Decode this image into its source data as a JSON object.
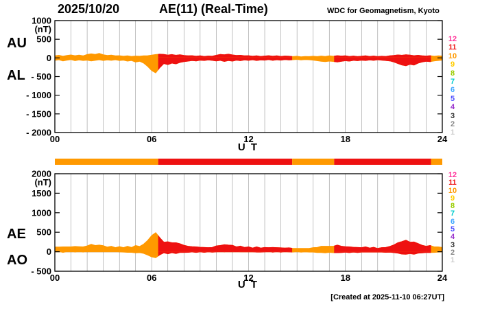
{
  "header": {
    "date": "2025/10/20",
    "title": "AE(11) (Real-Time)",
    "source": "WDC for Geomagnetism, Kyoto"
  },
  "footer": {
    "created": "[Created at 2025-11-10 06:27UT]"
  },
  "colors": {
    "orange": "#ff9900",
    "red": "#ee1111",
    "grid": "#808080",
    "axis": "#000000"
  },
  "legend": {
    "levels": [
      {
        "label": "12",
        "color": "#ff3399"
      },
      {
        "label": "11",
        "color": "#ee1111"
      },
      {
        "label": "10",
        "color": "#ff9900"
      },
      {
        "label": "9",
        "color": "#ffcc00"
      },
      {
        "label": "8",
        "color": "#99cc00"
      },
      {
        "label": "7",
        "color": "#00cccc"
      },
      {
        "label": "6",
        "color": "#44aaff"
      },
      {
        "label": "5",
        "color": "#5050ff"
      },
      {
        "label": "4",
        "color": "#9933cc"
      },
      {
        "label": "3",
        "color": "#333333"
      },
      {
        "label": "2",
        "color": "#888888"
      },
      {
        "label": "1",
        "color": "#cccccc"
      }
    ]
  },
  "chart_data": {
    "type": "area",
    "title": "AE(11) (Real-Time)",
    "date": "2025/10/20",
    "xlabel": "U T",
    "x_range": [
      0,
      24
    ],
    "x_hours_step": 0.25,
    "xtick_labels": [
      "00",
      "06",
      "12",
      "18",
      "24"
    ],
    "panels": [
      {
        "id": "top",
        "left_labels": [
          "AU",
          "AL"
        ],
        "unit": "(nT)",
        "ylim": [
          -2000,
          1000
        ],
        "yticks": [
          1000,
          500,
          0,
          -500,
          -1000,
          -1500,
          -2000
        ],
        "ytick_labels": [
          "1000",
          "500",
          "0",
          "- 500",
          "- 1000",
          "- 1500",
          "- 2000"
        ],
        "series_names": [
          "AU",
          "AL"
        ]
      },
      {
        "id": "bottom",
        "left_labels": [
          "AE",
          "AO"
        ],
        "unit": "(nT)",
        "ylim": [
          -500,
          2000
        ],
        "yticks": [
          2000,
          1500,
          1000,
          500,
          0,
          -500
        ],
        "ytick_labels": [
          "2000",
          "1500",
          "1000",
          "500",
          "0",
          "- 500"
        ],
        "series_names": [
          "AE",
          "AO"
        ]
      }
    ],
    "station_count_segments": [
      {
        "start_hour": 0,
        "end_hour": 6.4,
        "stations": 10,
        "color": "#ff9900"
      },
      {
        "start_hour": 6.4,
        "end_hour": 14.7,
        "stations": 11,
        "color": "#ee1111"
      },
      {
        "start_hour": 14.7,
        "end_hour": 17.3,
        "stations": 10,
        "color": "#ff9900"
      },
      {
        "start_hour": 17.3,
        "end_hour": 23.3,
        "stations": 11,
        "color": "#ee1111"
      },
      {
        "start_hour": 23.3,
        "end_hour": 24,
        "stations": 10,
        "color": "#ff9900"
      }
    ],
    "series": [
      {
        "name": "AU",
        "unit": "nT",
        "values": [
          55,
          70,
          45,
          65,
          80,
          60,
          75,
          55,
          90,
          110,
          95,
          120,
          85,
          65,
          75,
          55,
          60,
          45,
          55,
          40,
          50,
          45,
          55,
          60,
          75,
          90,
          100,
          95,
          75,
          90,
          70,
          85,
          65,
          55,
          60,
          45,
          55,
          40,
          50,
          45,
          70,
          95,
          85,
          100,
          80,
          65,
          70,
          55,
          60,
          45,
          55,
          40,
          50,
          60,
          45,
          55,
          40,
          50,
          45,
          35,
          45,
          30,
          40,
          35,
          45,
          35,
          50,
          40,
          55,
          45,
          60,
          50,
          55,
          40,
          50,
          35,
          45,
          55,
          40,
          50,
          35,
          45,
          40,
          55,
          65,
          80,
          70,
          85,
          75,
          60,
          70,
          55,
          50,
          60,
          45,
          55,
          50
        ]
      },
      {
        "name": "AL",
        "unit": "nT",
        "values": [
          -65,
          -50,
          -80,
          -60,
          -45,
          -75,
          -55,
          -70,
          -60,
          -80,
          -65,
          -50,
          -70,
          -55,
          -65,
          -50,
          -70,
          -60,
          -85,
          -70,
          -110,
          -90,
          -140,
          -230,
          -340,
          -400,
          -260,
          -150,
          -180,
          -140,
          -160,
          -120,
          -100,
          -85,
          -70,
          -80,
          -60,
          -70,
          -55,
          -65,
          -80,
          -65,
          -95,
          -70,
          -85,
          -60,
          -75,
          -55,
          -65,
          -50,
          -70,
          -55,
          -60,
          -45,
          -65,
          -50,
          -60,
          -45,
          -55,
          -50,
          -40,
          -55,
          -45,
          -50,
          -60,
          -75,
          -90,
          -100,
          -85,
          -95,
          -110,
          -90,
          -75,
          -85,
          -65,
          -75,
          -60,
          -70,
          -55,
          -65,
          -50,
          -60,
          -70,
          -80,
          -110,
          -150,
          -190,
          -210,
          -170,
          -190,
          -140,
          -110,
          -90,
          -100,
          -80,
          -70,
          -60
        ]
      },
      {
        "name": "AE",
        "unit": "nT",
        "values": [
          120,
          120,
          125,
          125,
          125,
          135,
          130,
          125,
          150,
          190,
          160,
          170,
          155,
          120,
          140,
          105,
          130,
          105,
          140,
          110,
          160,
          135,
          195,
          290,
          415,
          490,
          360,
          245,
          255,
          230,
          230,
          205,
          165,
          140,
          130,
          125,
          115,
          110,
          105,
          110,
          150,
          160,
          180,
          170,
          165,
          125,
          145,
          110,
          125,
          95,
          125,
          95,
          110,
          105,
          110,
          105,
          100,
          95,
          100,
          85,
          85,
          85,
          85,
          85,
          105,
          110,
          140,
          140,
          140,
          140,
          170,
          140,
          130,
          125,
          115,
          110,
          105,
          125,
          95,
          115,
          85,
          105,
          110,
          135,
          175,
          230,
          260,
          295,
          245,
          250,
          210,
          165,
          140,
          160,
          125,
          125,
          110
        ]
      },
      {
        "name": "AO",
        "unit": "nT",
        "values": [
          -5,
          10,
          -18,
          3,
          18,
          -8,
          10,
          -8,
          15,
          15,
          15,
          35,
          8,
          5,
          5,
          3,
          -5,
          -8,
          -15,
          -15,
          -30,
          -23,
          -43,
          -85,
          -133,
          -155,
          -80,
          -28,
          -53,
          -25,
          -45,
          -18,
          -18,
          -15,
          -5,
          -18,
          -3,
          -15,
          -3,
          -10,
          -5,
          15,
          -5,
          15,
          -3,
          3,
          -3,
          0,
          -3,
          -3,
          -8,
          -8,
          -5,
          8,
          -10,
          3,
          -10,
          3,
          -5,
          -8,
          3,
          -13,
          -3,
          -8,
          -8,
          -20,
          -20,
          -30,
          -15,
          -25,
          -25,
          -20,
          -10,
          -23,
          -8,
          -20,
          -8,
          -8,
          -8,
          -8,
          -8,
          -8,
          -15,
          -13,
          -23,
          -35,
          -60,
          -63,
          -48,
          -65,
          -35,
          -28,
          -20,
          -20,
          -18,
          -8,
          -5
        ]
      }
    ]
  }
}
